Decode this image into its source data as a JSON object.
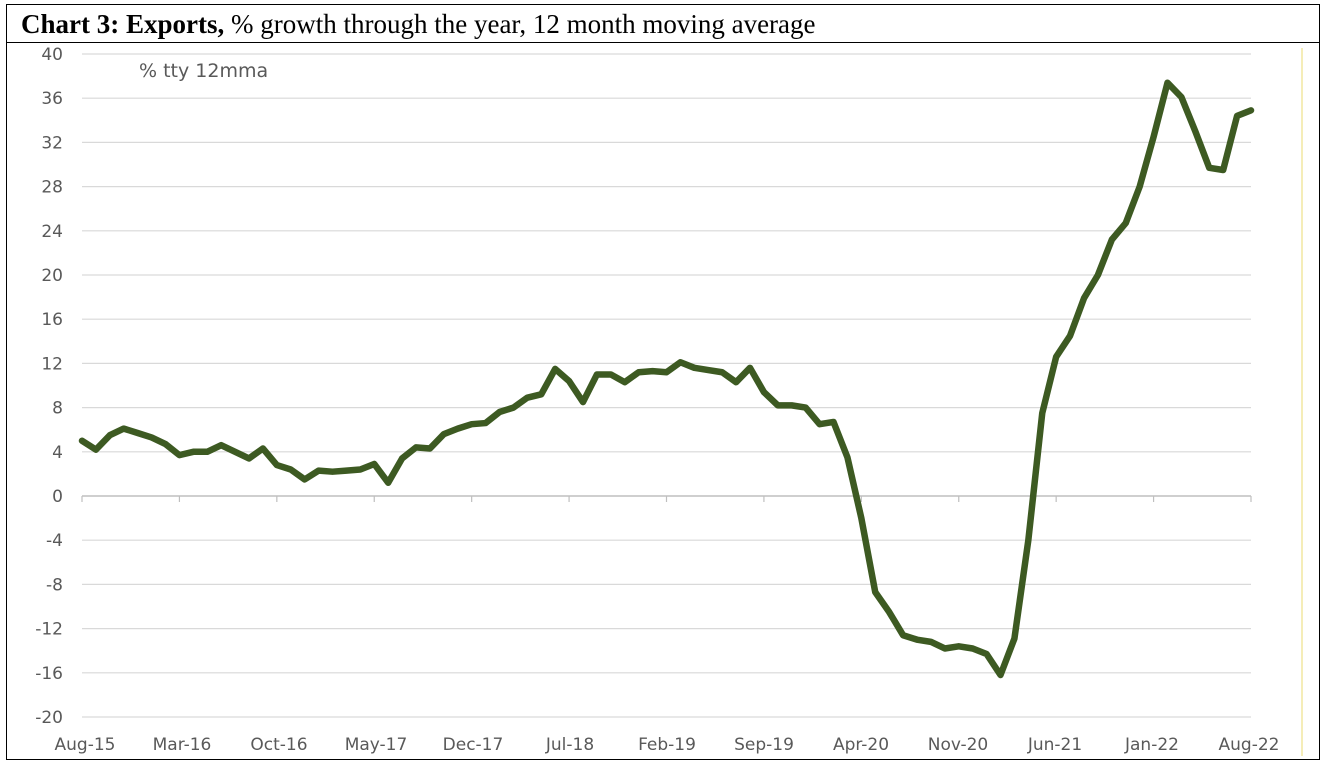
{
  "title": {
    "bold": "Chart 3: Exports,",
    "rest": " % growth through the year, 12 month moving average"
  },
  "chart_data": {
    "type": "line",
    "annotation": "% tty 12mma",
    "ylim": [
      -20,
      40
    ],
    "yticks": [
      40,
      36,
      32,
      28,
      24,
      20,
      16,
      12,
      8,
      4,
      0,
      -4,
      -8,
      -12,
      -16,
      -20
    ],
    "xtick_labels": [
      "Aug-15",
      "Mar-16",
      "Oct-16",
      "May-17",
      "Dec-17",
      "Jul-18",
      "Feb-19",
      "Sep-19",
      "Apr-20",
      "Nov-20",
      "Jun-21",
      "Jan-22",
      "Aug-22"
    ],
    "grid": true,
    "line_color": "#3d5a22",
    "series": [
      {
        "values": [
          5.0,
          4.2,
          5.5,
          6.1,
          5.7,
          5.3,
          4.7,
          3.7,
          4.0,
          4.0,
          4.6,
          4.0,
          3.4,
          4.3,
          2.8,
          2.4,
          1.5,
          2.3,
          2.2,
          2.3,
          2.4,
          2.9,
          1.2,
          3.4,
          4.4,
          4.3,
          5.6,
          6.1,
          6.5,
          6.6,
          7.6,
          8.0,
          8.9,
          9.2,
          11.5,
          10.4,
          8.5,
          11.0,
          11.0,
          10.3,
          11.2,
          11.3,
          11.2,
          12.1,
          11.6,
          11.4,
          11.2,
          10.3,
          11.6,
          9.4,
          8.2,
          8.2,
          8.0,
          6.5,
          6.7,
          3.5,
          -2.0,
          -8.7,
          -10.5,
          -12.6,
          -13.0,
          -13.2,
          -13.8,
          -13.6,
          -13.8,
          -14.3,
          -16.2,
          -12.9,
          -4.0,
          7.5,
          12.6,
          14.5,
          17.9,
          20.0,
          23.2,
          24.7,
          28.0,
          32.5,
          37.4,
          36.1,
          33.0,
          29.7,
          29.5,
          34.4,
          34.9
        ]
      }
    ]
  }
}
